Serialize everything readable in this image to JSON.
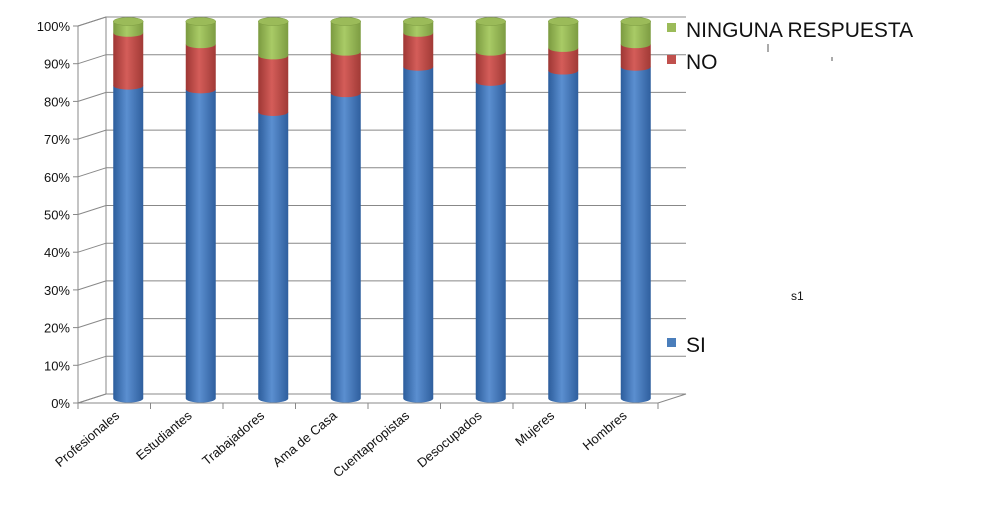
{
  "chart_data": {
    "type": "bar",
    "stacked": true,
    "percent_stacked": true,
    "style": "3d-cylinder",
    "title": "",
    "xlabel": "",
    "ylabel": "",
    "ylim": [
      0,
      100
    ],
    "y_ticks": [
      "0%",
      "10%",
      "20%",
      "30%",
      "40%",
      "50%",
      "60%",
      "70%",
      "80%",
      "90%",
      "100%"
    ],
    "grid": true,
    "legend_position": "right",
    "categories": [
      "Profesionales",
      "Estudiantes",
      "Trabajadores",
      "Ama de Casa",
      "Cuentapropistas",
      "Desocupados",
      "Mujeres",
      "Hombres"
    ],
    "series": [
      {
        "name": "SI",
        "color": "#4a7ebb",
        "values": [
          83,
          82,
          76,
          81,
          88,
          84,
          87,
          88
        ]
      },
      {
        "name": "NO",
        "color": "#c0504d",
        "values": [
          14,
          12,
          15,
          11,
          9,
          8,
          6,
          6
        ]
      },
      {
        "name": "NINGUNA RESPUESTA",
        "color": "#9bbb59",
        "values": [
          3,
          6,
          9,
          8,
          3,
          8,
          7,
          6
        ]
      }
    ],
    "legend": [
      "NINGUNA RESPUESTA",
      "NO",
      "SI"
    ]
  },
  "stray_text": "s1"
}
